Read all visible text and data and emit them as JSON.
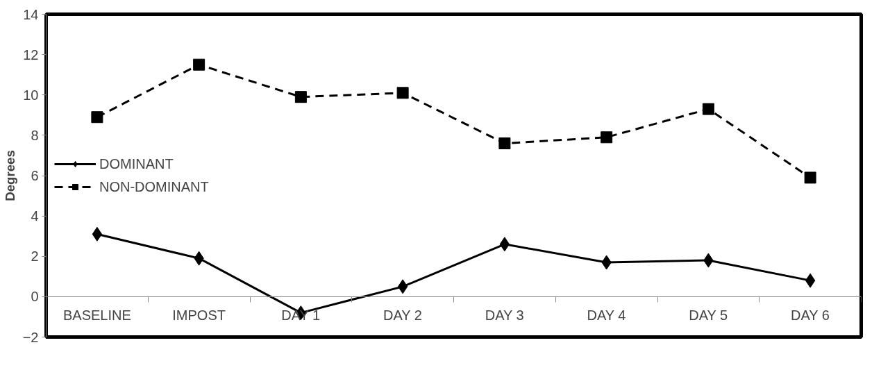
{
  "chart_data": {
    "type": "line",
    "ylabel": "Degrees",
    "categories": [
      "BASELINE",
      "IMPOST",
      "DAY 1",
      "DAY 2",
      "DAY 3",
      "DAY 4",
      "DAY 5",
      "DAY 6"
    ],
    "series": [
      {
        "name": "DOMINANT",
        "color": "#000000",
        "values": [
          3.1,
          1.9,
          -0.8,
          0.5,
          2.6,
          1.7,
          1.8,
          0.8
        ],
        "marker": "diamond",
        "line_style": "solid"
      },
      {
        "name": "NON-DOMINANT",
        "color": "#000000",
        "values": [
          8.9,
          11.5,
          9.9,
          10.1,
          7.6,
          7.9,
          9.3,
          5.9
        ],
        "marker": "square",
        "line_style": "dashed"
      }
    ],
    "ylim": [
      -2,
      14
    ],
    "yticks": [
      -2,
      0,
      2,
      4,
      6,
      8,
      10,
      12,
      14
    ],
    "grid": false,
    "legend": "left"
  }
}
